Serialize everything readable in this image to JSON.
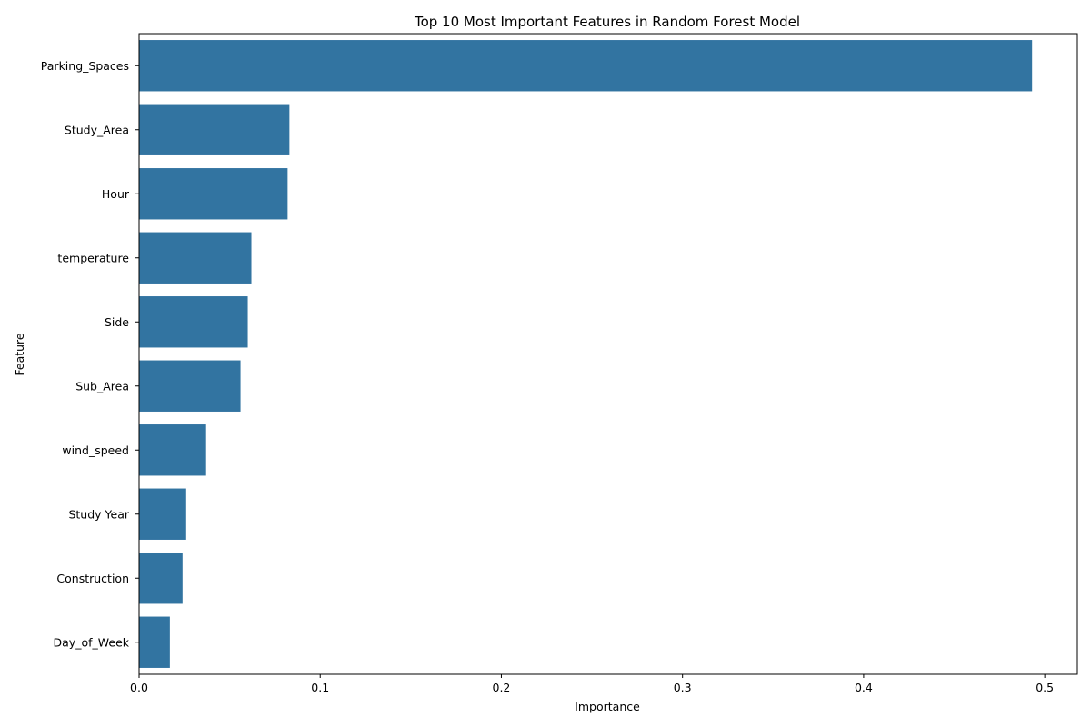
{
  "chart_data": {
    "type": "bar",
    "orientation": "horizontal",
    "title": "Top 10 Most Important Features in Random Forest Model",
    "xlabel": "Importance",
    "ylabel": "Feature",
    "xlim": [
      0,
      0.518
    ],
    "xticks": [
      0.0,
      0.1,
      0.2,
      0.3,
      0.4,
      0.5
    ],
    "xtick_labels": [
      "0.0",
      "0.1",
      "0.2",
      "0.3",
      "0.4",
      "0.5"
    ],
    "grid": false,
    "bar_color": "#3274a1",
    "categories": [
      "Parking_Spaces",
      "Study_Area",
      "Hour",
      "temperature",
      "Side",
      "Sub_Area",
      "wind_speed",
      "Study Year",
      "Construction",
      "Day_of_Week"
    ],
    "values": [
      0.493,
      0.083,
      0.082,
      0.062,
      0.06,
      0.056,
      0.037,
      0.026,
      0.024,
      0.017
    ]
  }
}
